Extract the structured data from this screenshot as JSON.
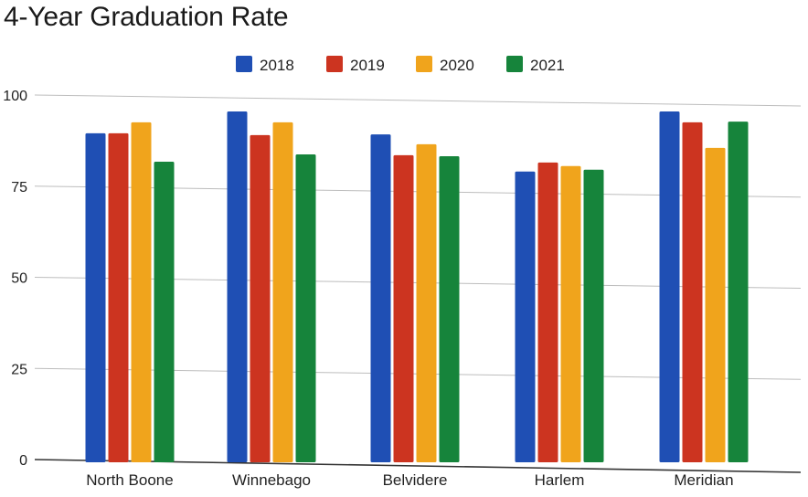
{
  "chart_data": {
    "type": "bar",
    "title": "4-Year Graduation Rate",
    "categories": [
      "North Boone",
      "Winnebago",
      "Belvidere",
      "Harlem",
      "Meridian"
    ],
    "series": [
      {
        "name": "2018",
        "color": "#1f4fb4",
        "values": [
          89.5,
          95.5,
          89.2,
          79.0,
          95.5
        ]
      },
      {
        "name": "2019",
        "color": "#cc3420",
        "values": [
          89.5,
          89.0,
          83.5,
          81.5,
          92.5
        ]
      },
      {
        "name": "2020",
        "color": "#f0a41c",
        "values": [
          92.5,
          92.5,
          86.5,
          80.5,
          85.5
        ]
      },
      {
        "name": "2021",
        "color": "#16843b",
        "values": [
          81.7,
          83.7,
          83.2,
          79.5,
          92.7
        ]
      }
    ],
    "ylim": [
      0,
      100
    ],
    "yticks": [
      0,
      25,
      50,
      75,
      100
    ],
    "xlabel": "",
    "ylabel": "",
    "grid": true,
    "legend_position": "top-center"
  }
}
